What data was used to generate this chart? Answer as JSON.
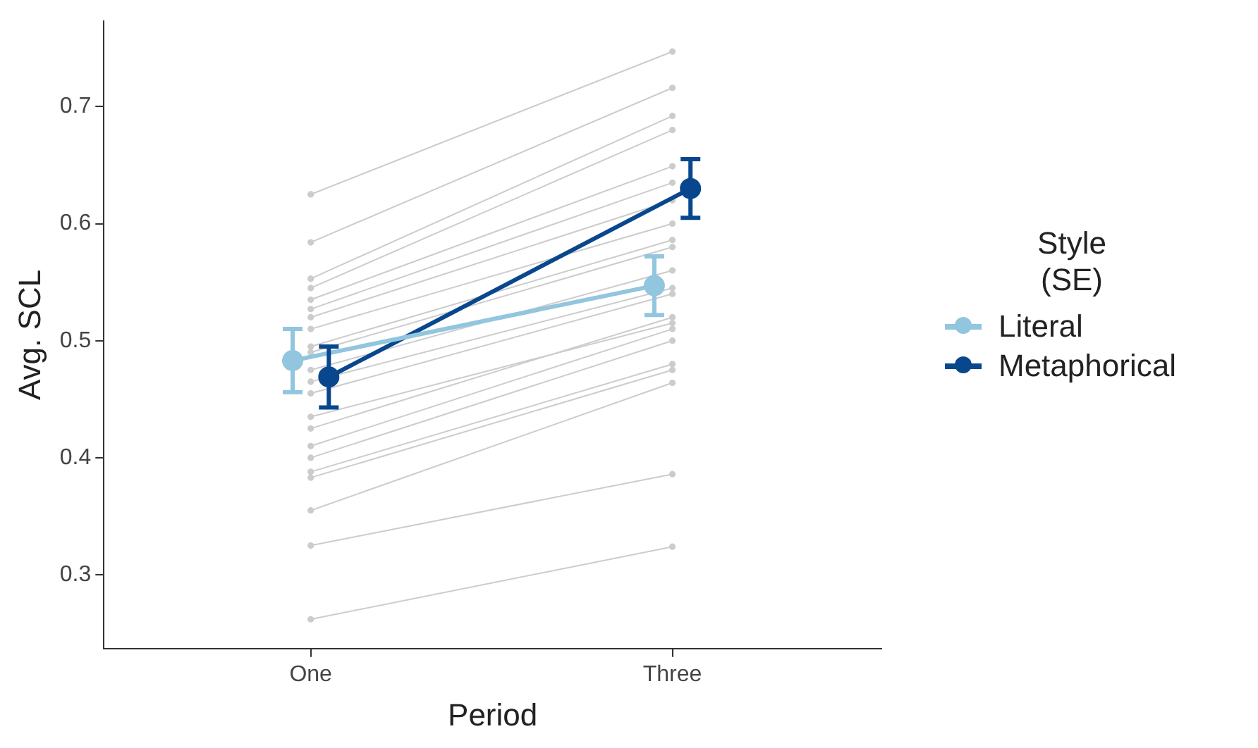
{
  "chart_data": {
    "type": "line",
    "xlabel": "Period",
    "ylabel": "Avg. SCL",
    "legend_title": "Style (SE)",
    "legend": "right",
    "grid": false,
    "marker": "circle",
    "line_style": "solid",
    "categories": [
      "One",
      "Three"
    ],
    "ylim": [
      0.237,
      0.773
    ],
    "yticks": [
      0.3,
      0.4,
      0.5,
      0.6,
      0.7
    ],
    "series": [
      {
        "color": "#cccccc",
        "values": [
          0.262,
          0.324
        ]
      },
      {
        "color": "#cccccc",
        "values": [
          0.325,
          0.386
        ]
      },
      {
        "color": "#cccccc",
        "values": [
          0.355,
          0.464
        ]
      },
      {
        "color": "#cccccc",
        "values": [
          0.383,
          0.475
        ]
      },
      {
        "color": "#cccccc",
        "values": [
          0.388,
          0.48
        ]
      },
      {
        "color": "#cccccc",
        "values": [
          0.4,
          0.5
        ]
      },
      {
        "color": "#cccccc",
        "values": [
          0.41,
          0.51
        ]
      },
      {
        "color": "#cccccc",
        "values": [
          0.425,
          0.52
        ]
      },
      {
        "color": "#cccccc",
        "values": [
          0.435,
          0.515
        ]
      },
      {
        "color": "#cccccc",
        "values": [
          0.455,
          0.54
        ]
      },
      {
        "color": "#cccccc",
        "values": [
          0.465,
          0.545
        ]
      },
      {
        "color": "#cccccc",
        "values": [
          0.475,
          0.56
        ]
      },
      {
        "color": "#cccccc",
        "values": [
          0.49,
          0.58
        ]
      },
      {
        "color": "#cccccc",
        "values": [
          0.495,
          0.586
        ]
      },
      {
        "color": "#cccccc",
        "values": [
          0.51,
          0.6
        ]
      },
      {
        "color": "#cccccc",
        "values": [
          0.52,
          0.62
        ]
      },
      {
        "color": "#cccccc",
        "values": [
          0.527,
          0.635
        ]
      },
      {
        "color": "#cccccc",
        "values": [
          0.535,
          0.649
        ]
      },
      {
        "color": "#cccccc",
        "values": [
          0.545,
          0.68
        ]
      },
      {
        "color": "#cccccc",
        "values": [
          0.553,
          0.692
        ]
      },
      {
        "color": "#cccccc",
        "values": [
          0.584,
          0.716
        ]
      },
      {
        "color": "#cccccc",
        "values": [
          0.625,
          0.747
        ]
      },
      {
        "name": "Literal",
        "color": "#92c5de",
        "values": [
          0.483,
          0.547
        ],
        "errors": [
          0.027,
          0.025
        ]
      },
      {
        "name": "Metaphorical",
        "color": "#08478d",
        "values": [
          0.469,
          0.63
        ],
        "errors": [
          0.026,
          0.025
        ]
      }
    ]
  }
}
